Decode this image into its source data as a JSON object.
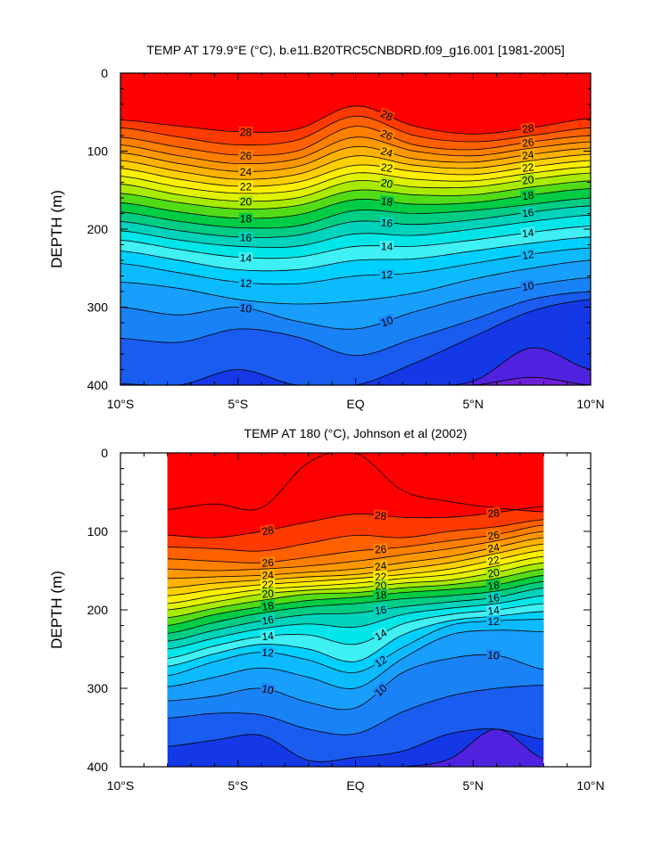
{
  "chart_data": [
    {
      "type": "contour",
      "title": "TEMP AT 179.9°E (°C), b.e11.B20TRC5CNBDRD.f09_g16.001 [1981-2005]",
      "ylabel": "DEPTH (m)",
      "xlabel": "",
      "xlim": [
        -10,
        10
      ],
      "ylim": [
        400,
        0
      ],
      "x_ticks": [
        {
          "value": -10,
          "label": "10°S"
        },
        {
          "value": -5,
          "label": "5°S"
        },
        {
          "value": 0,
          "label": "EQ"
        },
        {
          "value": 5,
          "label": "5°N"
        },
        {
          "value": 10,
          "label": "10°N"
        }
      ],
      "y_ticks": [
        {
          "value": 0,
          "label": "0"
        },
        {
          "value": 100,
          "label": "100"
        },
        {
          "value": 200,
          "label": "200"
        },
        {
          "value": 300,
          "label": "300"
        },
        {
          "value": 400,
          "label": "400"
        }
      ],
      "data_extent_x": [
        -10,
        10
      ],
      "contour_levels": [
        6,
        7,
        8,
        9,
        10,
        11,
        12,
        13,
        14,
        15,
        16,
        17,
        18,
        19,
        20,
        21,
        22,
        23,
        24,
        25,
        26,
        27,
        28,
        29
      ],
      "labeled_levels": [
        28,
        26,
        24,
        22,
        20,
        18,
        16,
        14,
        12,
        10
      ],
      "knot_x": [
        -10,
        -7.5,
        -5,
        -2.5,
        0,
        2.5,
        5,
        7.5,
        10
      ],
      "isotherms": [
        {
          "level": 29,
          "depth": [
            0,
            0,
            0,
            0,
            0,
            0,
            0,
            0,
            0
          ]
        },
        {
          "level": 28,
          "depth": [
            60,
            68,
            75,
            72,
            42,
            68,
            78,
            70,
            58
          ]
        },
        {
          "level": 27,
          "depth": [
            70,
            82,
            92,
            86,
            55,
            80,
            88,
            80,
            70
          ]
        },
        {
          "level": 26,
          "depth": [
            82,
            95,
            105,
            100,
            68,
            92,
            98,
            88,
            80
          ]
        },
        {
          "level": 25,
          "depth": [
            92,
            106,
            116,
            110,
            82,
            100,
            106,
            96,
            88
          ]
        },
        {
          "level": 24,
          "depth": [
            102,
            116,
            126,
            120,
            94,
            110,
            114,
            104,
            96
          ]
        },
        {
          "level": 23,
          "depth": [
            112,
            126,
            136,
            130,
            106,
            118,
            122,
            112,
            104
          ]
        },
        {
          "level": 22,
          "depth": [
            122,
            136,
            145,
            140,
            118,
            126,
            130,
            120,
            112
          ]
        },
        {
          "level": 21,
          "depth": [
            132,
            146,
            154,
            150,
            128,
            136,
            138,
            128,
            120
          ]
        },
        {
          "level": 20,
          "depth": [
            142,
            156,
            164,
            160,
            138,
            146,
            146,
            136,
            128
          ]
        },
        {
          "level": 19,
          "depth": [
            154,
            166,
            174,
            170,
            150,
            156,
            156,
            146,
            138
          ]
        },
        {
          "level": 18,
          "depth": [
            166,
            178,
            186,
            182,
            162,
            168,
            166,
            156,
            148
          ]
        },
        {
          "level": 17,
          "depth": [
            178,
            190,
            198,
            196,
            176,
            180,
            176,
            168,
            160
          ]
        },
        {
          "level": 16,
          "depth": [
            190,
            202,
            210,
            208,
            190,
            194,
            188,
            178,
            170
          ]
        },
        {
          "level": 15,
          "depth": [
            202,
            214,
            222,
            222,
            206,
            208,
            200,
            190,
            182
          ]
        },
        {
          "level": 14,
          "depth": [
            214,
            226,
            236,
            236,
            222,
            222,
            214,
            204,
            196
          ]
        },
        {
          "level": 13,
          "depth": [
            228,
            240,
            252,
            252,
            240,
            238,
            228,
            218,
            210
          ]
        },
        {
          "level": 12,
          "depth": [
            244,
            256,
            268,
            270,
            260,
            256,
            244,
            232,
            224
          ]
        },
        {
          "level": 11,
          "depth": [
            268,
            276,
            290,
            296,
            292,
            282,
            264,
            250,
            240
          ]
        },
        {
          "level": 10,
          "depth": [
            300,
            310,
            300,
            318,
            328,
            306,
            286,
            272,
            262
          ]
        },
        {
          "level": 9,
          "depth": [
            340,
            345,
            328,
            338,
            362,
            340,
            316,
            290,
            280
          ]
        },
        {
          "level": 8,
          "depth": [
            398,
            400,
            380,
            400,
            400,
            372,
            338,
            305,
            290
          ]
        },
        {
          "level": 7,
          "depth": [
            400,
            400,
            400,
            400,
            400,
            400,
            395,
            352,
            380
          ]
        },
        {
          "level": 6,
          "depth": [
            400,
            400,
            400,
            400,
            400,
            400,
            400,
            390,
            400
          ]
        }
      ]
    },
    {
      "type": "contour",
      "title": "TEMP AT 180 (°C), Johnson et al (2002)",
      "ylabel": "DEPTH (m)",
      "xlabel": "",
      "xlim": [
        -10,
        10
      ],
      "ylim": [
        400,
        0
      ],
      "x_ticks": [
        {
          "value": -10,
          "label": "10°S"
        },
        {
          "value": -5,
          "label": "5°S"
        },
        {
          "value": 0,
          "label": "EQ"
        },
        {
          "value": 5,
          "label": "5°N"
        },
        {
          "value": 10,
          "label": "10°N"
        }
      ],
      "y_ticks": [
        {
          "value": 0,
          "label": "0"
        },
        {
          "value": 100,
          "label": "100"
        },
        {
          "value": 200,
          "label": "200"
        },
        {
          "value": 300,
          "label": "300"
        },
        {
          "value": 400,
          "label": "400"
        }
      ],
      "data_extent_x": [
        -8,
        8
      ],
      "contour_levels": [
        7,
        8,
        9,
        10,
        11,
        12,
        13,
        14,
        15,
        16,
        17,
        18,
        19,
        20,
        21,
        22,
        23,
        24,
        25,
        26,
        27,
        28,
        29
      ],
      "labeled_levels": [
        28,
        26,
        24,
        22,
        20,
        18,
        16,
        14,
        12,
        10
      ],
      "knot_x": [
        -8,
        -6,
        -4,
        -2,
        0,
        2,
        4,
        6,
        8
      ],
      "isotherms": [
        {
          "level": 29,
          "depth": [
            72,
            65,
            70,
            12,
            0,
            48,
            62,
            70,
            75
          ]
        },
        {
          "level": 28,
          "depth": [
            105,
            108,
            100,
            88,
            78,
            82,
            82,
            76,
            68
          ]
        },
        {
          "level": 27,
          "depth": [
            120,
            122,
            125,
            115,
            105,
            108,
            100,
            94,
            85
          ]
        },
        {
          "level": 26,
          "depth": [
            135,
            138,
            140,
            133,
            125,
            120,
            112,
            104,
            92
          ]
        },
        {
          "level": 25,
          "depth": [
            148,
            150,
            148,
            144,
            138,
            130,
            122,
            112,
            100
          ]
        },
        {
          "level": 24,
          "depth": [
            160,
            158,
            156,
            152,
            148,
            140,
            132,
            120,
            108
          ]
        },
        {
          "level": 23,
          "depth": [
            172,
            166,
            162,
            158,
            155,
            148,
            140,
            128,
            116
          ]
        },
        {
          "level": 22,
          "depth": [
            182,
            174,
            168,
            164,
            160,
            155,
            148,
            136,
            124
          ]
        },
        {
          "level": 21,
          "depth": [
            192,
            182,
            174,
            170,
            166,
            160,
            155,
            144,
            132
          ]
        },
        {
          "level": 20,
          "depth": [
            200,
            190,
            180,
            175,
            172,
            166,
            162,
            152,
            140
          ]
        },
        {
          "level": 19,
          "depth": [
            210,
            198,
            188,
            180,
            178,
            172,
            168,
            160,
            148
          ]
        },
        {
          "level": 18,
          "depth": [
            220,
            206,
            196,
            188,
            184,
            178,
            174,
            168,
            156
          ]
        },
        {
          "level": 17,
          "depth": [
            230,
            216,
            204,
            196,
            192,
            186,
            182,
            176,
            164
          ]
        },
        {
          "level": 16,
          "depth": [
            240,
            226,
            214,
            206,
            204,
            196,
            190,
            184,
            172
          ]
        },
        {
          "level": 15,
          "depth": [
            250,
            236,
            224,
            218,
            222,
            206,
            198,
            192,
            182
          ]
        },
        {
          "level": 14,
          "depth": [
            262,
            246,
            234,
            232,
            244,
            218,
            206,
            200,
            192
          ]
        },
        {
          "level": 13,
          "depth": [
            272,
            256,
            244,
            250,
            266,
            232,
            214,
            208,
            202
          ]
        },
        {
          "level": 12,
          "depth": [
            284,
            266,
            254,
            264,
            280,
            248,
            220,
            214,
            212
          ]
        },
        {
          "level": 11,
          "depth": [
            298,
            286,
            274,
            286,
            300,
            262,
            232,
            226,
            228
          ]
        },
        {
          "level": 10,
          "depth": [
            316,
            310,
            300,
            318,
            325,
            280,
            262,
            258,
            276
          ]
        },
        {
          "level": 9,
          "depth": [
            338,
            332,
            334,
            352,
            358,
            330,
            310,
            300,
            296
          ]
        },
        {
          "level": 8,
          "depth": [
            374,
            366,
            360,
            392,
            388,
            380,
            358,
            352,
            365
          ]
        },
        {
          "level": 7,
          "depth": [
            400,
            400,
            400,
            400,
            400,
            400,
            390,
            352,
            390
          ]
        }
      ]
    }
  ]
}
